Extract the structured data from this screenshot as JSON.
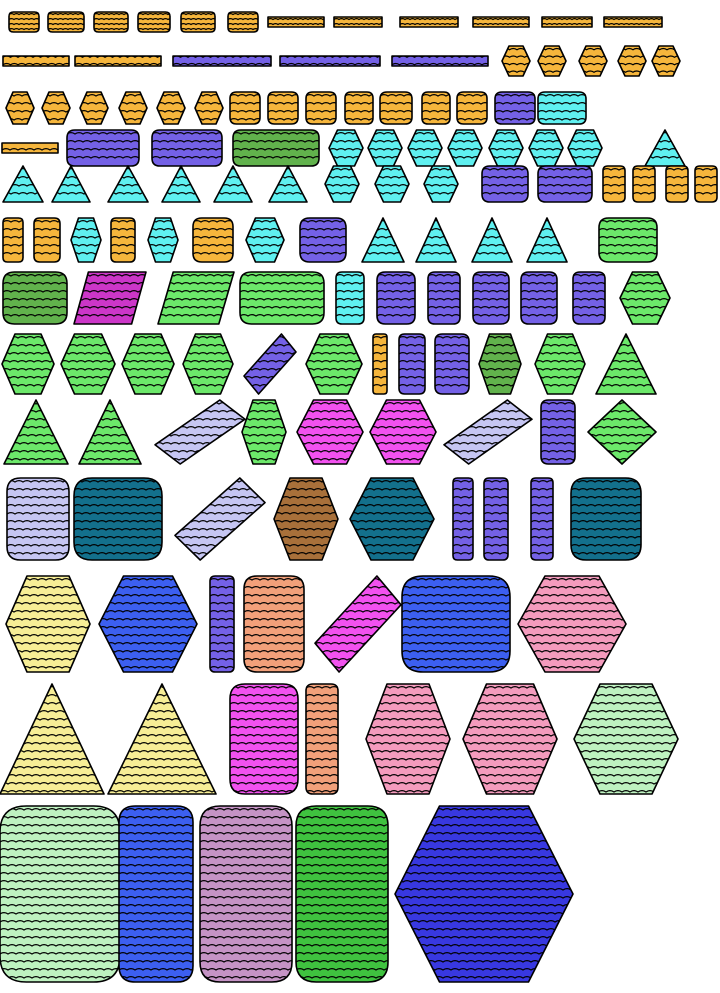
{
  "title": "",
  "palette": {
    "orange": "#f6b63c",
    "purple": "#7461e6",
    "cyan": "#5ff0f0",
    "green_dark": "#61b24c",
    "green_light": "#6ce86a",
    "magenta": "#cc36c8",
    "pink_bright": "#f251ef",
    "lavender": "#c6c6f3",
    "teal": "#13708c",
    "brown": "#a8703a",
    "yellow": "#f7ee96",
    "blue": "#3c5ff0",
    "salmon": "#f2a07a",
    "pink": "#f49bbd",
    "mint": "#bef2c0",
    "mauve": "#c593c5",
    "green_mid": "#3fc23f",
    "indigo": "#3838e0"
  },
  "rows": [
    {
      "items": [
        {
          "kind": "square",
          "color": "orange"
        },
        {
          "kind": "square",
          "color": "orange"
        },
        {
          "kind": "square",
          "color": "orange"
        },
        {
          "kind": "square",
          "color": "orange"
        },
        {
          "kind": "square",
          "color": "orange"
        },
        {
          "kind": "square",
          "color": "orange"
        },
        {
          "kind": "bar",
          "color": "orange"
        },
        {
          "kind": "bar",
          "color": "orange"
        },
        {
          "kind": "bar",
          "color": "orange"
        },
        {
          "kind": "bar",
          "color": "orange"
        },
        {
          "kind": "bar",
          "color": "orange"
        },
        {
          "kind": "bar",
          "color": "orange"
        }
      ]
    },
    {
      "items": [
        {
          "kind": "bar",
          "color": "orange"
        },
        {
          "kind": "bar",
          "color": "orange"
        },
        {
          "kind": "bar",
          "color": "purple"
        },
        {
          "kind": "bar",
          "color": "purple"
        },
        {
          "kind": "bar",
          "color": "purple"
        },
        {
          "kind": "hex",
          "color": "orange"
        },
        {
          "kind": "hex",
          "color": "orange"
        },
        {
          "kind": "hex",
          "color": "orange"
        },
        {
          "kind": "hex",
          "color": "orange"
        },
        {
          "kind": "hex",
          "color": "orange"
        }
      ]
    },
    {
      "items": [
        {
          "kind": "hex",
          "color": "orange"
        },
        {
          "kind": "hex",
          "color": "orange"
        },
        {
          "kind": "hex",
          "color": "orange"
        },
        {
          "kind": "hex",
          "color": "orange"
        },
        {
          "kind": "hex",
          "color": "orange"
        },
        {
          "kind": "hex",
          "color": "orange"
        },
        {
          "kind": "square",
          "color": "orange"
        },
        {
          "kind": "square",
          "color": "orange"
        },
        {
          "kind": "square",
          "color": "orange"
        },
        {
          "kind": "square",
          "color": "orange"
        },
        {
          "kind": "square",
          "color": "orange"
        },
        {
          "kind": "square",
          "color": "orange"
        },
        {
          "kind": "square",
          "color": "orange"
        },
        {
          "kind": "blob",
          "color": "purple"
        },
        {
          "kind": "blob",
          "color": "cyan"
        }
      ]
    },
    {
      "items": [
        {
          "kind": "bar",
          "color": "orange"
        },
        {
          "kind": "blob",
          "color": "purple"
        },
        {
          "kind": "blob",
          "color": "purple"
        },
        {
          "kind": "blob",
          "color": "green_dark"
        },
        {
          "kind": "hex",
          "color": "cyan"
        },
        {
          "kind": "hex",
          "color": "cyan"
        },
        {
          "kind": "hex",
          "color": "cyan"
        },
        {
          "kind": "hex",
          "color": "cyan"
        },
        {
          "kind": "hex",
          "color": "cyan"
        },
        {
          "kind": "hex",
          "color": "cyan"
        },
        {
          "kind": "hex",
          "color": "cyan"
        },
        {
          "kind": "triangle",
          "color": "cyan"
        }
      ]
    },
    {
      "items": [
        {
          "kind": "triangle",
          "color": "cyan"
        },
        {
          "kind": "triangle",
          "color": "cyan"
        },
        {
          "kind": "triangle",
          "color": "cyan"
        },
        {
          "kind": "triangle",
          "color": "cyan"
        },
        {
          "kind": "triangle",
          "color": "cyan"
        },
        {
          "kind": "triangle",
          "color": "cyan"
        },
        {
          "kind": "hex",
          "color": "cyan"
        },
        {
          "kind": "hex",
          "color": "cyan"
        },
        {
          "kind": "hex",
          "color": "cyan"
        },
        {
          "kind": "blob",
          "color": "purple"
        },
        {
          "kind": "blob",
          "color": "purple"
        },
        {
          "kind": "tall",
          "color": "orange"
        },
        {
          "kind": "tall",
          "color": "orange"
        },
        {
          "kind": "tall",
          "color": "orange"
        },
        {
          "kind": "tall",
          "color": "orange"
        }
      ]
    },
    {
      "items": [
        {
          "kind": "tall",
          "color": "orange"
        },
        {
          "kind": "tall",
          "color": "orange"
        },
        {
          "kind": "hex",
          "color": "cyan"
        },
        {
          "kind": "tall",
          "color": "orange"
        },
        {
          "kind": "hex",
          "color": "cyan"
        },
        {
          "kind": "square",
          "color": "orange"
        },
        {
          "kind": "hex",
          "color": "cyan"
        },
        {
          "kind": "blob",
          "color": "purple"
        },
        {
          "kind": "triangle",
          "color": "cyan"
        },
        {
          "kind": "triangle",
          "color": "cyan"
        },
        {
          "kind": "triangle",
          "color": "cyan"
        },
        {
          "kind": "triangle",
          "color": "cyan"
        },
        {
          "kind": "square",
          "color": "green_light"
        }
      ]
    },
    {
      "items": [
        {
          "kind": "blob",
          "color": "green_dark"
        },
        {
          "kind": "para",
          "color": "magenta"
        },
        {
          "kind": "para",
          "color": "green_light"
        },
        {
          "kind": "blob",
          "color": "green_light"
        },
        {
          "kind": "tall",
          "color": "cyan"
        },
        {
          "kind": "tall",
          "color": "purple"
        },
        {
          "kind": "tall",
          "color": "purple"
        },
        {
          "kind": "tall",
          "color": "purple"
        },
        {
          "kind": "tall",
          "color": "purple"
        },
        {
          "kind": "tall",
          "color": "purple"
        },
        {
          "kind": "hex",
          "color": "green_light"
        }
      ]
    },
    {
      "items": [
        {
          "kind": "hex",
          "color": "green_light"
        },
        {
          "kind": "hex",
          "color": "green_light"
        },
        {
          "kind": "hex",
          "color": "green_light"
        },
        {
          "kind": "hex",
          "color": "green_light"
        },
        {
          "kind": "diag",
          "color": "purple"
        },
        {
          "kind": "hex",
          "color": "green_light"
        },
        {
          "kind": "tall",
          "color": "orange"
        },
        {
          "kind": "tall",
          "color": "purple"
        },
        {
          "kind": "tall",
          "color": "purple"
        },
        {
          "kind": "hex",
          "color": "green_dark"
        },
        {
          "kind": "hex",
          "color": "green_light"
        },
        {
          "kind": "triangle",
          "color": "green_light"
        }
      ]
    },
    {
      "items": [
        {
          "kind": "triangle",
          "color": "green_light"
        },
        {
          "kind": "triangle",
          "color": "green_light"
        },
        {
          "kind": "diag",
          "color": "lavender"
        },
        {
          "kind": "hex",
          "color": "green_light"
        },
        {
          "kind": "hex",
          "color": "pink_bright"
        },
        {
          "kind": "hex",
          "color": "pink_bright"
        },
        {
          "kind": "diag",
          "color": "lavender"
        },
        {
          "kind": "tall",
          "color": "purple"
        },
        {
          "kind": "diamond",
          "color": "green_light"
        }
      ]
    },
    {
      "items": [
        {
          "kind": "square",
          "color": "lavender"
        },
        {
          "kind": "blob",
          "color": "teal"
        },
        {
          "kind": "diag",
          "color": "lavender"
        },
        {
          "kind": "hex",
          "color": "brown"
        },
        {
          "kind": "hex",
          "color": "teal"
        },
        {
          "kind": "tall",
          "color": "purple"
        },
        {
          "kind": "tall",
          "color": "purple"
        },
        {
          "kind": "tall",
          "color": "purple"
        },
        {
          "kind": "blob",
          "color": "teal"
        }
      ]
    },
    {
      "items": [
        {
          "kind": "hex",
          "color": "yellow"
        },
        {
          "kind": "hex",
          "color": "blue"
        },
        {
          "kind": "tall",
          "color": "purple"
        },
        {
          "kind": "tall",
          "color": "salmon"
        },
        {
          "kind": "diag",
          "color": "pink_bright"
        },
        {
          "kind": "blob",
          "color": "blue"
        },
        {
          "kind": "hex",
          "color": "pink"
        }
      ]
    },
    {
      "items": [
        {
          "kind": "triangle",
          "color": "yellow"
        },
        {
          "kind": "triangle",
          "color": "yellow"
        },
        {
          "kind": "tall",
          "color": "pink_bright"
        },
        {
          "kind": "tall",
          "color": "salmon"
        },
        {
          "kind": "hex",
          "color": "pink"
        },
        {
          "kind": "hex",
          "color": "pink"
        },
        {
          "kind": "hex",
          "color": "mint"
        }
      ]
    },
    {
      "items": [
        {
          "kind": "blob",
          "color": "mint"
        },
        {
          "kind": "tall",
          "color": "blue"
        },
        {
          "kind": "tall",
          "color": "mauve"
        },
        {
          "kind": "tall",
          "color": "green_mid"
        },
        {
          "kind": "hex",
          "color": "indigo"
        }
      ]
    }
  ]
}
